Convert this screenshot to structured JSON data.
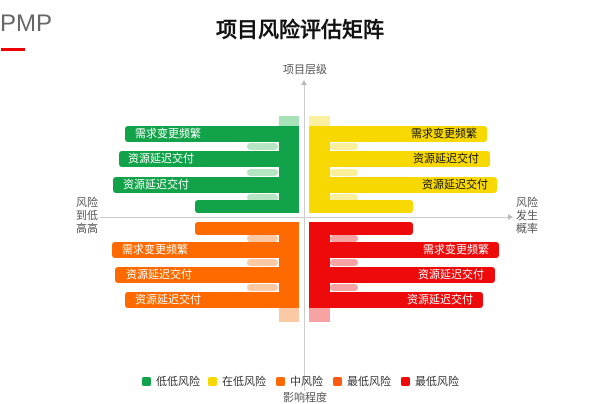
{
  "brand": "PMP",
  "title": "项目风险评估矩阵",
  "axes": {
    "top": "项目层级",
    "left": [
      "风险",
      "到低",
      "高高"
    ],
    "right": [
      "风险",
      "发生",
      "概率"
    ],
    "bottom": "影响程度"
  },
  "colors": {
    "green": "#12a34a",
    "yellow": "#f7d800",
    "orange": "#ff6a00",
    "red": "#ee0a0a"
  },
  "quadrants": {
    "green": [
      "需求变更频繁",
      "资源延迟交付",
      "资源延迟交付"
    ],
    "yellow": [
      "需求变更频繁",
      "资源延迟交付",
      "资源延迟交付"
    ],
    "orange": [
      "需求变更频繁",
      "资源延迟交付",
      "资源延迟交付"
    ],
    "red": [
      "需求变更频繁",
      "资源延迟交付",
      "资源延迟交付"
    ]
  },
  "legend": [
    {
      "label": "低低风险",
      "color": "#12a34a"
    },
    {
      "label": "在低风险",
      "color": "#f7d800"
    },
    {
      "label": "中风险",
      "color": "#ff6a00"
    },
    {
      "label": "最低风险",
      "color": "#ff5a10"
    },
    {
      "label": "最低风险",
      "color": "#ee0a0a"
    }
  ]
}
